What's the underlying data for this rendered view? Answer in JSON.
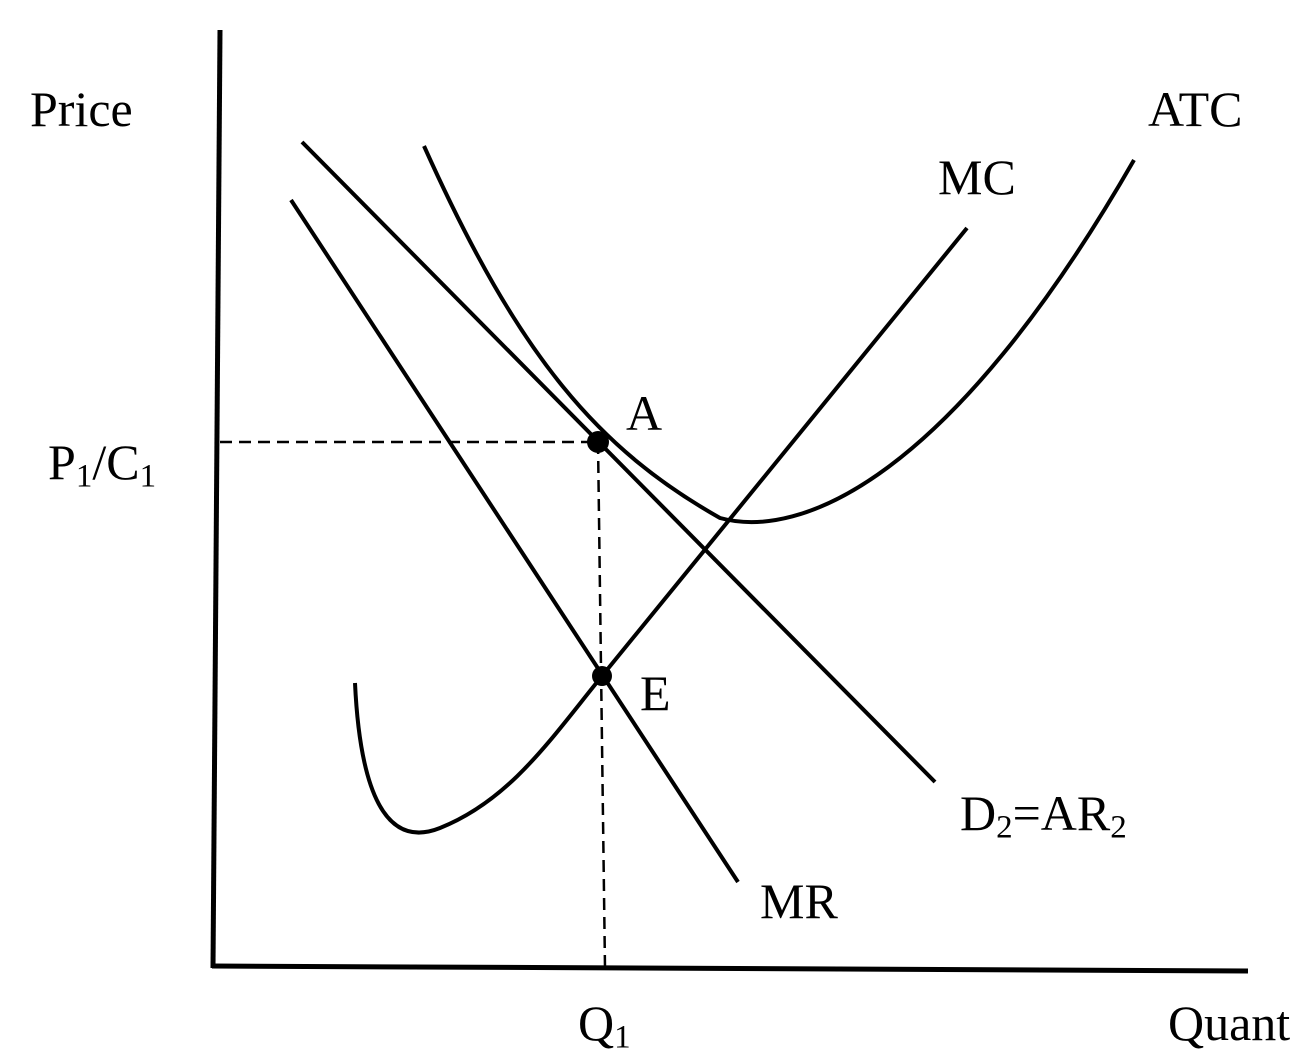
{
  "axes": {
    "y_label": "Price",
    "x_label": "Quant",
    "price_tick": {
      "main_a": "P",
      "sub_a": "1",
      "slash": "/",
      "main_b": "C",
      "sub_b": "1"
    },
    "quantity_tick": {
      "main": "Q",
      "sub": "1"
    }
  },
  "curves": {
    "atc": "ATC",
    "mc": "MC",
    "mr": "MR",
    "demand": {
      "main_a": "D",
      "sub_a": "2",
      "eq": "=AR",
      "sub_b": "2"
    }
  },
  "points": {
    "a": "A",
    "e": "E"
  },
  "style": {
    "ink": "#000000",
    "background": "#ffffff"
  }
}
